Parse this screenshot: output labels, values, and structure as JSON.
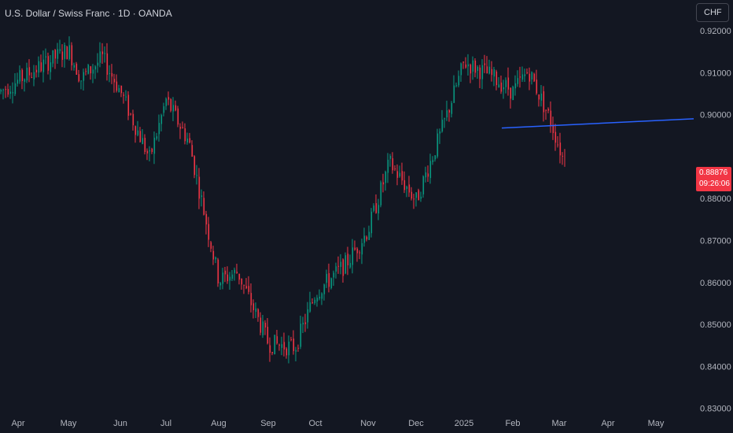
{
  "header": {
    "title": "U.S. Dollar / Swiss Franc · 1D · OANDA",
    "currency_button": "CHF"
  },
  "last_price": {
    "value": "0.88876",
    "countdown": "09:26:06"
  },
  "colors": {
    "background": "#131722",
    "up": "#089981",
    "down": "#f23645",
    "trendline": "#2962ff",
    "axis_text": "#b2b5be"
  },
  "chart_data": {
    "type": "candlestick",
    "x_tick_labels": [
      "Apr",
      "May",
      "Jun",
      "Jul",
      "Aug",
      "Sep",
      "Oct",
      "Nov",
      "Dec",
      "2025",
      "Feb",
      "Mar",
      "Apr",
      "May"
    ],
    "y_tick_labels": [
      "0.92000",
      "0.91000",
      "0.90000",
      "0.88000",
      "0.87000",
      "0.86000",
      "0.85000",
      "0.84000",
      "0.83000"
    ],
    "ylim": [
      0.8275,
      0.9245
    ],
    "price_path": [
      {
        "x": "Apr",
        "price": 0.9055
      },
      {
        "x": "late Apr",
        "price": 0.9125
      },
      {
        "x": "May",
        "price": 0.9155
      },
      {
        "x": "mid May",
        "price": 0.9085
      },
      {
        "x": "late May",
        "price": 0.9135
      },
      {
        "x": "Jun",
        "price": 0.9055
      },
      {
        "x": "mid Jun",
        "price": 0.8895
      },
      {
        "x": "Jul",
        "price": 0.9035
      },
      {
        "x": "mid Jul",
        "price": 0.8935
      },
      {
        "x": "Aug",
        "price": 0.8605
      },
      {
        "x": "mid Aug",
        "price": 0.8625
      },
      {
        "x": "Sep",
        "price": 0.8455
      },
      {
        "x": "late Sep",
        "price": 0.8445
      },
      {
        "x": "Oct",
        "price": 0.8575
      },
      {
        "x": "late Oct",
        "price": 0.8645
      },
      {
        "x": "Nov",
        "price": 0.8725
      },
      {
        "x": "mid Nov",
        "price": 0.8885
      },
      {
        "x": "Dec",
        "price": 0.8795
      },
      {
        "x": "mid Dec",
        "price": 0.8955
      },
      {
        "x": "2025",
        "price": 0.9125
      },
      {
        "x": "mid Jan",
        "price": 0.9095
      },
      {
        "x": "Feb",
        "price": 0.9055
      },
      {
        "x": "mid Feb",
        "price": 0.9105
      },
      {
        "x": "late Feb",
        "price": 0.8985
      },
      {
        "x": "Mar",
        "price": 0.8888
      }
    ],
    "trendline": {
      "from": {
        "x": "late Jan",
        "y": 0.8968
      },
      "to": {
        "x": "beyond May",
        "y": 0.899
      }
    },
    "last_price": 0.88876
  }
}
